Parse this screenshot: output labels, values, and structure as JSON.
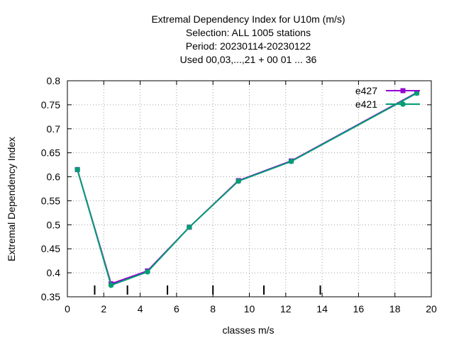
{
  "chart_data": {
    "type": "line",
    "title_lines": [
      "Extremal Dependency Index  for U10m (m/s)",
      "Selection: ALL    1005 stations",
      "Period: 20230114-20230122",
      "Used  00,03,...,21  + 00 01 ... 36"
    ],
    "xlabel": "classes m/s",
    "ylabel": "Extremal Dependency Index",
    "xlim": [
      0,
      20
    ],
    "ylim": [
      0.35,
      0.8
    ],
    "xticks": [
      0,
      2,
      4,
      6,
      8,
      10,
      12,
      14,
      16,
      18,
      20
    ],
    "yticks": [
      0.35,
      0.4,
      0.45,
      0.5,
      0.55,
      0.6,
      0.65,
      0.7,
      0.75,
      0.8
    ],
    "xtick_labels": [
      "0",
      "2",
      "4",
      "6",
      "8",
      "10",
      "12",
      "14",
      "16",
      "18",
      "20"
    ],
    "ytick_labels": [
      "0.35",
      "0.4",
      "0.45",
      "0.5",
      "0.55",
      "0.6",
      "0.65",
      "0.7",
      "0.75",
      "0.8"
    ],
    "grid": true,
    "legend_position": "top-right",
    "class_boundaries": [
      1.5,
      3.3,
      5.5,
      8,
      10.8,
      13.9
    ],
    "series": [
      {
        "name": "e427",
        "color": "#9400d3",
        "marker": "square",
        "x": [
          0.55,
          2.4,
          4.4,
          6.7,
          9.4,
          12.3,
          19.2
        ],
        "y": [
          0.615,
          0.377,
          0.404,
          0.495,
          0.592,
          0.633,
          0.775
        ]
      },
      {
        "name": "e421",
        "color": "#009e73",
        "marker": "circle",
        "x": [
          0.55,
          2.4,
          4.4,
          6.7,
          9.4,
          12.3,
          19.2
        ],
        "y": [
          0.615,
          0.374,
          0.402,
          0.495,
          0.591,
          0.632,
          0.774
        ]
      }
    ]
  }
}
